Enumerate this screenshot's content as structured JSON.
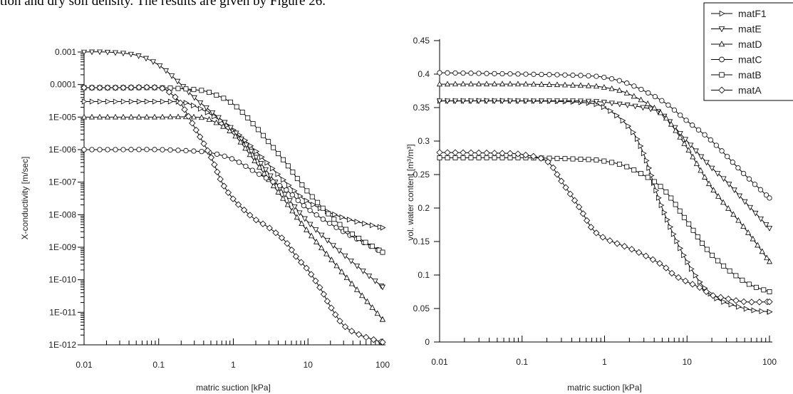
{
  "caption": "tion and dry soil density. The results are given by Figure 26.",
  "chart_data": [
    {
      "type": "line",
      "xscale": "log",
      "yscale": "log",
      "xlim": [
        0.01,
        100
      ],
      "ylim": [
        1e-12,
        0.001
      ],
      "xlabel": "matric suction [kPa]",
      "ylabel": "X-conductivity [m/sec]",
      "xticklabels": [
        "0.01",
        "0.1",
        "1",
        "10",
        "100"
      ],
      "yticklabels": [
        "1E-012",
        "1E-011",
        "1E-010",
        "1E-009",
        "1E-008",
        "1E-007",
        "1E-006",
        "1E-005",
        "0.0001",
        "0.001"
      ],
      "series": [
        {
          "name": "matF1",
          "marker": "triangle-right",
          "x": [
            0.01,
            0.03,
            0.1,
            0.2,
            0.3,
            0.5,
            1,
            2,
            5,
            10,
            30,
            100
          ],
          "y": [
            3e-05,
            3e-05,
            3e-05,
            2.9e-05,
            2.2e-05,
            1.2e-05,
            4e-06,
            9e-07,
            1e-07,
            2.5e-08,
            8e-09,
            4e-09
          ]
        },
        {
          "name": "matE",
          "marker": "triangle-down",
          "x": [
            0.01,
            0.02,
            0.05,
            0.1,
            0.2,
            0.3,
            0.5,
            1,
            2,
            5,
            10,
            30,
            100
          ],
          "y": [
            0.001,
            0.001,
            0.0008,
            0.0004,
            0.0001,
            4e-05,
            1.5e-05,
            4e-06,
            6e-07,
            4e-08,
            6e-09,
            6e-10,
            6e-11
          ]
        },
        {
          "name": "matD",
          "marker": "triangle-up",
          "x": [
            0.01,
            0.03,
            0.1,
            0.3,
            0.5,
            1,
            2,
            5,
            10,
            30,
            100
          ],
          "y": [
            1e-05,
            1e-05,
            1e-05,
            1e-05,
            8e-06,
            3e-06,
            4e-07,
            2.5e-08,
            3e-09,
            1.5e-10,
            6e-12
          ]
        },
        {
          "name": "matC",
          "marker": "circle",
          "x": [
            0.01,
            0.03,
            0.1,
            0.3,
            0.5,
            1,
            2,
            5,
            10,
            30,
            100
          ],
          "y": [
            1e-06,
            1e-06,
            1e-06,
            9e-07,
            8e-07,
            5e-07,
            2e-07,
            6e-08,
            1.5e-08,
            3e-09,
            7e-10
          ]
        },
        {
          "name": "matB",
          "marker": "square",
          "x": [
            0.01,
            0.03,
            0.1,
            0.3,
            0.5,
            1,
            2,
            5,
            10,
            30,
            100
          ],
          "y": [
            8e-05,
            8e-05,
            8e-05,
            7e-05,
            5.5e-05,
            2.5e-05,
            5e-06,
            4e-07,
            5e-08,
            4e-09,
            7e-10
          ]
        },
        {
          "name": "matA",
          "marker": "diamond",
          "x": [
            0.01,
            0.03,
            0.1,
            0.15,
            0.2,
            0.3,
            0.5,
            0.7,
            1,
            1.5,
            2,
            3,
            5,
            7,
            10,
            15,
            20,
            30,
            50,
            100
          ],
          "y": [
            8e-05,
            8e-05,
            8e-05,
            5e-05,
            2.5e-05,
            5e-06,
            6e-07,
            1e-07,
            3e-08,
            1.2e-08,
            7e-09,
            4e-09,
            1.5e-09,
            5e-10,
            2e-10,
            5e-11,
            1.5e-11,
            4e-12,
            2e-12,
            1.2e-12
          ]
        }
      ]
    },
    {
      "type": "line",
      "xscale": "log",
      "yscale": "linear",
      "xlim": [
        0.01,
        100
      ],
      "ylim": [
        0,
        0.45
      ],
      "xlabel": "matric suction [kPa]",
      "ylabel": "vol. water content [m³/m³]",
      "xticklabels": [
        "0.01",
        "0.1",
        "1",
        "10",
        "100"
      ],
      "yticklabels": [
        "0",
        "0.05",
        "0.1",
        "0.15",
        "0.2",
        "0.25",
        "0.3",
        "0.35",
        "0.4",
        "0.45"
      ],
      "legend_position": "top-right",
      "series": [
        {
          "name": "matF1",
          "marker": "triangle-right",
          "x": [
            0.01,
            0.1,
            0.5,
            1,
            2,
            3,
            5,
            10,
            20,
            50,
            100
          ],
          "y": [
            0.36,
            0.36,
            0.358,
            0.35,
            0.32,
            0.28,
            0.2,
            0.12,
            0.07,
            0.05,
            0.045
          ]
        },
        {
          "name": "matE",
          "marker": "triangle-down",
          "x": [
            0.01,
            0.1,
            0.5,
            1,
            3,
            5,
            10,
            20,
            30,
            50,
            100
          ],
          "y": [
            0.36,
            0.36,
            0.36,
            0.358,
            0.35,
            0.34,
            0.3,
            0.26,
            0.24,
            0.21,
            0.17
          ]
        },
        {
          "name": "matD",
          "marker": "triangle-up",
          "x": [
            0.01,
            0.1,
            0.5,
            1,
            2,
            5,
            10,
            20,
            50,
            100
          ],
          "y": [
            0.385,
            0.385,
            0.383,
            0.38,
            0.37,
            0.34,
            0.29,
            0.23,
            0.17,
            0.12
          ]
        },
        {
          "name": "matC",
          "marker": "circle",
          "x": [
            0.01,
            0.1,
            0.5,
            1,
            2,
            5,
            10,
            20,
            50,
            100
          ],
          "y": [
            0.402,
            0.4,
            0.398,
            0.395,
            0.385,
            0.36,
            0.33,
            0.3,
            0.25,
            0.215
          ]
        },
        {
          "name": "matB",
          "marker": "square",
          "x": [
            0.01,
            0.1,
            0.5,
            1,
            2,
            5,
            10,
            20,
            50,
            100
          ],
          "y": [
            0.275,
            0.275,
            0.273,
            0.27,
            0.26,
            0.23,
            0.18,
            0.13,
            0.09,
            0.075
          ]
        },
        {
          "name": "matA",
          "marker": "diamond",
          "x": [
            0.01,
            0.05,
            0.1,
            0.2,
            0.3,
            0.5,
            0.7,
            1,
            2,
            3,
            5,
            7,
            10,
            15,
            20,
            30,
            50,
            100
          ],
          "y": [
            0.283,
            0.282,
            0.28,
            0.27,
            0.24,
            0.2,
            0.17,
            0.155,
            0.14,
            0.13,
            0.115,
            0.1,
            0.09,
            0.08,
            0.07,
            0.065,
            0.06,
            0.06
          ]
        }
      ]
    }
  ]
}
